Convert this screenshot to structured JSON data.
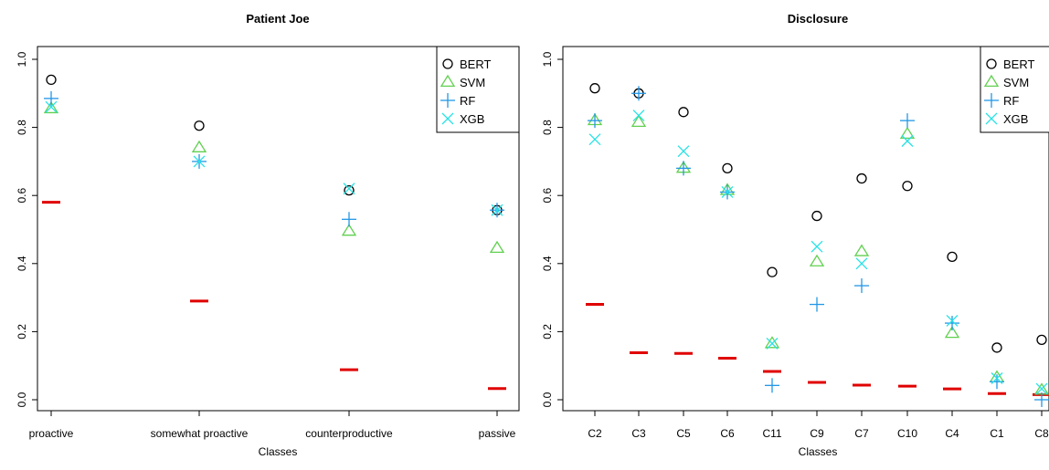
{
  "chart_data": [
    {
      "type": "scatter",
      "title": "Patient Joe",
      "xlabel": "Classes",
      "ylabel": "",
      "ylim": [
        0,
        1
      ],
      "y_ticks": [
        "0.0",
        "0.2",
        "0.4",
        "0.6",
        "0.8",
        "1.0"
      ],
      "categories": [
        "proactive",
        "somewhat proactive",
        "counterproductive",
        "passive"
      ],
      "legend": {
        "position": "top-right",
        "entries": [
          "BERT",
          "SVM",
          "RF",
          "XGB"
        ]
      },
      "series": [
        {
          "name": "BERT",
          "marker": "circle",
          "color": "#000000",
          "values": [
            0.94,
            0.805,
            0.615,
            0.557
          ]
        },
        {
          "name": "SVM",
          "marker": "triangle",
          "color": "#61D04F",
          "values": [
            0.855,
            0.74,
            0.495,
            0.445
          ]
        },
        {
          "name": "RF",
          "marker": "plus",
          "color": "#2297E6",
          "values": [
            0.885,
            0.7,
            0.53,
            0.557
          ]
        },
        {
          "name": "XGB",
          "marker": "x",
          "color": "#28E2E5",
          "values": [
            0.86,
            0.7,
            0.62,
            0.557
          ]
        }
      ],
      "baseline": {
        "color": "#E00000",
        "values": [
          0.58,
          0.29,
          0.088,
          0.033
        ]
      }
    },
    {
      "type": "scatter",
      "title": "Disclosure",
      "xlabel": "Classes",
      "ylabel": "",
      "ylim": [
        0,
        1
      ],
      "y_ticks": [
        "0.0",
        "0.2",
        "0.4",
        "0.6",
        "0.8",
        "1.0"
      ],
      "categories": [
        "C2",
        "C3",
        "C5",
        "C6",
        "C11",
        "C9",
        "C7",
        "C10",
        "C4",
        "C1",
        "C8"
      ],
      "legend": {
        "position": "top-right",
        "entries": [
          "BERT",
          "SVM",
          "RF",
          "XGB"
        ]
      },
      "series": [
        {
          "name": "BERT",
          "marker": "circle",
          "color": "#000000",
          "values": [
            0.915,
            0.9,
            0.845,
            0.68,
            0.375,
            0.54,
            0.65,
            0.628,
            0.42,
            0.153,
            0.176
          ]
        },
        {
          "name": "SVM",
          "marker": "triangle",
          "color": "#61D04F",
          "values": [
            0.82,
            0.815,
            0.68,
            0.615,
            0.165,
            0.405,
            0.435,
            0.78,
            0.195,
            0.065,
            0.028
          ]
        },
        {
          "name": "RF",
          "marker": "plus",
          "color": "#2297E6",
          "values": [
            0.82,
            0.9,
            0.68,
            0.61,
            0.042,
            0.28,
            0.335,
            0.82,
            0.225,
            0.053,
            0.0
          ]
        },
        {
          "name": "XGB",
          "marker": "x",
          "color": "#28E2E5",
          "values": [
            0.765,
            0.835,
            0.73,
            0.61,
            0.165,
            0.45,
            0.4,
            0.76,
            0.232,
            0.063,
            0.032
          ]
        }
      ],
      "baseline": {
        "color": "#E00000",
        "values": [
          0.28,
          0.138,
          0.136,
          0.122,
          0.083,
          0.051,
          0.043,
          0.04,
          0.032,
          0.018,
          0.015
        ]
      }
    }
  ]
}
